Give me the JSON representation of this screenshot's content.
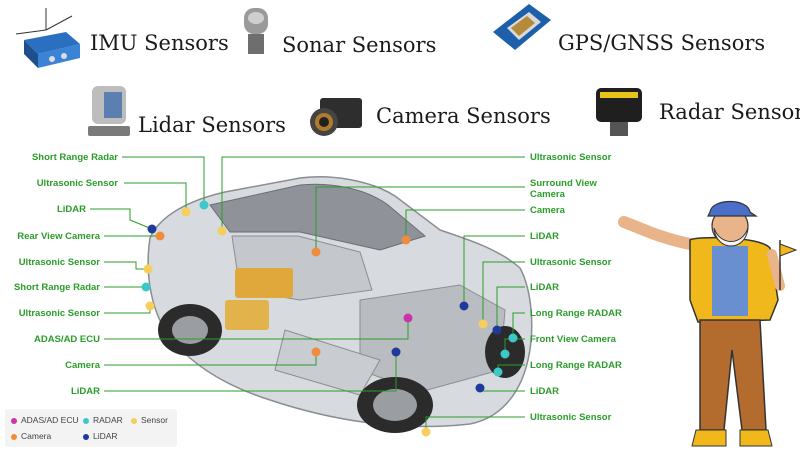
{
  "sensor_types": {
    "imu": "IMU Sensors",
    "sonar": "Sonar Sensors",
    "gps": "GPS/GNSS Sensors",
    "lidar": "Lidar Sensors",
    "camera": "Camera Sensors",
    "radar": "Radar Sensors"
  },
  "left_labels": [
    "Short Range Radar",
    "Ultrasonic Sensor",
    "LiDAR",
    "Rear View Camera",
    "Ultrasonic Sensor",
    "Short Range Radar",
    "Ultrasonic Sensor",
    "ADAS/AD ECU",
    "Camera",
    "LiDAR"
  ],
  "right_labels": [
    "Ultrasonic Sensor",
    "Surround View",
    "Camera",
    "Camera",
    "LiDAR",
    "Ultrasonic Sensor",
    "LiDAR",
    "Long Range RADAR",
    "Front View Camera",
    "Long Range RADAR",
    "LiDAR",
    "Ultrasonic Sensor"
  ],
  "legend": {
    "ecu": "ADAS/AD ECU",
    "radar": "RADAR",
    "sensor": "Sensor",
    "camera": "Camera",
    "lidar": "LiDAR"
  },
  "colors": {
    "ecu": "#cc33aa",
    "radar": "#3cc8c8",
    "sensor": "#f5cf5a",
    "camera": "#f08c3c",
    "lidar": "#1f3a9a",
    "leader": "#2a9d2a"
  }
}
